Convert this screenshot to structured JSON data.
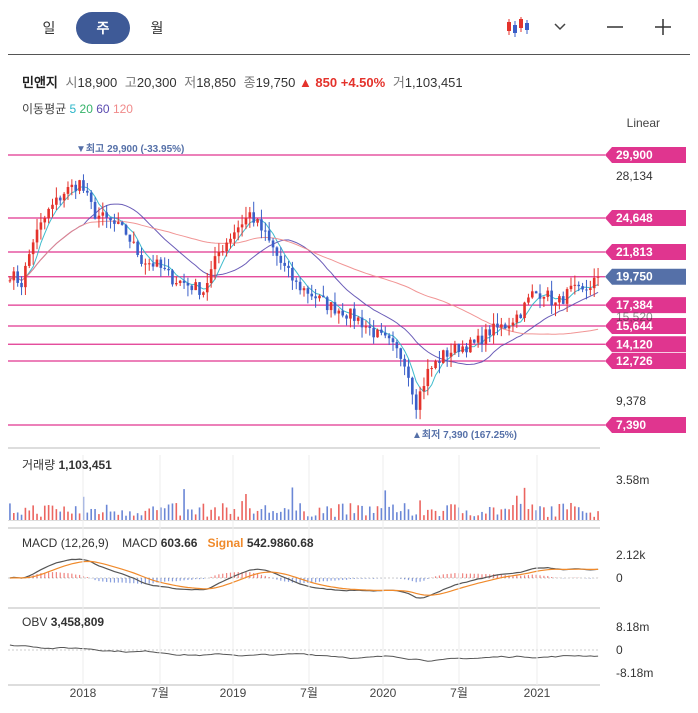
{
  "tabs": [
    {
      "label": "일",
      "active": false
    },
    {
      "label": "주",
      "active": true
    },
    {
      "label": "월",
      "active": false
    }
  ],
  "controls": {
    "chart_type_icon": "candlestick-icon",
    "dropdown_icon": "chevron-down-icon",
    "zoom_out_icon": "minus-icon",
    "zoom_in_icon": "plus-icon"
  },
  "info": {
    "name": "민앤지",
    "open_label": "시",
    "open": "18,900",
    "high_label": "고",
    "high": "20,300",
    "low_label": "저",
    "low": "18,850",
    "close_label": "종",
    "close": "19,750",
    "change": "▲ 850",
    "change_pct": "+4.50%",
    "volume_label": "거",
    "volume": "1,103,451"
  },
  "ma_legend": {
    "label": "이동평균",
    "periods": [
      "5",
      "20",
      "60",
      "120"
    ],
    "colors": [
      "#2ab5c8",
      "#35b36a",
      "#5b4bb0",
      "#f08a8a"
    ]
  },
  "scale_mode": "Linear",
  "colors": {
    "up": "#e4322b",
    "down": "#3a5fc8",
    "level": "#e0358f",
    "last": "#5570a8",
    "macd": "#555555",
    "signal": "#f08a2b"
  },
  "chart_data": {
    "type": "candlestick",
    "price_levels": [
      29900,
      24648,
      21813,
      19750,
      17384,
      15644,
      14120,
      12726,
      7390
    ],
    "price_level_labels": [
      "29,900",
      "24,648",
      "21,813",
      "19,750",
      "17,384",
      "15,644",
      "14,120",
      "12,726",
      "7,390"
    ],
    "axis_ticks": [
      28134,
      9378
    ],
    "axis_tick_labels": [
      "28,134",
      "9,378"
    ],
    "partial_label": "15,520",
    "last_price": 19750,
    "high_annotation": "▼최고 29,900 (-33.95%)",
    "low_annotation": "▲최저 7,390 (167.25%)",
    "x_tick_labels": [
      "2018",
      "7월",
      "2019",
      "7월",
      "2020",
      "7월",
      "2021"
    ],
    "weekly_close_knots": [
      [
        0,
        20000
      ],
      [
        3,
        19200
      ],
      [
        6,
        22800
      ],
      [
        10,
        25200
      ],
      [
        14,
        26800
      ],
      [
        18,
        27600
      ],
      [
        22,
        25000
      ],
      [
        26,
        24300
      ],
      [
        30,
        23400
      ],
      [
        34,
        21200
      ],
      [
        38,
        20700
      ],
      [
        42,
        19600
      ],
      [
        46,
        19100
      ],
      [
        50,
        18600
      ],
      [
        54,
        21800
      ],
      [
        58,
        23600
      ],
      [
        62,
        25000
      ],
      [
        66,
        23200
      ],
      [
        70,
        20900
      ],
      [
        74,
        19100
      ],
      [
        78,
        18300
      ],
      [
        82,
        17400
      ],
      [
        86,
        16900
      ],
      [
        90,
        16200
      ],
      [
        94,
        15100
      ],
      [
        98,
        14200
      ],
      [
        102,
        12800
      ],
      [
        105,
        9200
      ],
      [
        108,
        11800
      ],
      [
        112,
        13200
      ],
      [
        116,
        13900
      ],
      [
        120,
        14100
      ],
      [
        124,
        15200
      ],
      [
        128,
        15700
      ],
      [
        132,
        16800
      ],
      [
        135,
        18300
      ],
      [
        138,
        18500
      ],
      [
        141,
        17400
      ],
      [
        145,
        18600
      ],
      [
        148,
        18400
      ],
      [
        152,
        19750
      ]
    ],
    "volume_max_label": "3.58m",
    "macd_params": "(12,26,9)",
    "macd_value": "603.66",
    "signal_value": "542.98",
    "histogram_value": "60.68",
    "macd_axis_labels": [
      "2.12k",
      "0"
    ],
    "obv_value": "3,458,809",
    "obv_axis_labels": [
      "8.18m",
      "0",
      "-8.18m"
    ]
  },
  "panels": {
    "volume_label": "거래량",
    "volume_value": "1,103,451",
    "macd_label": "MACD",
    "macd_name": "MACD",
    "signal_name": "Signal",
    "obv_label": "OBV"
  }
}
